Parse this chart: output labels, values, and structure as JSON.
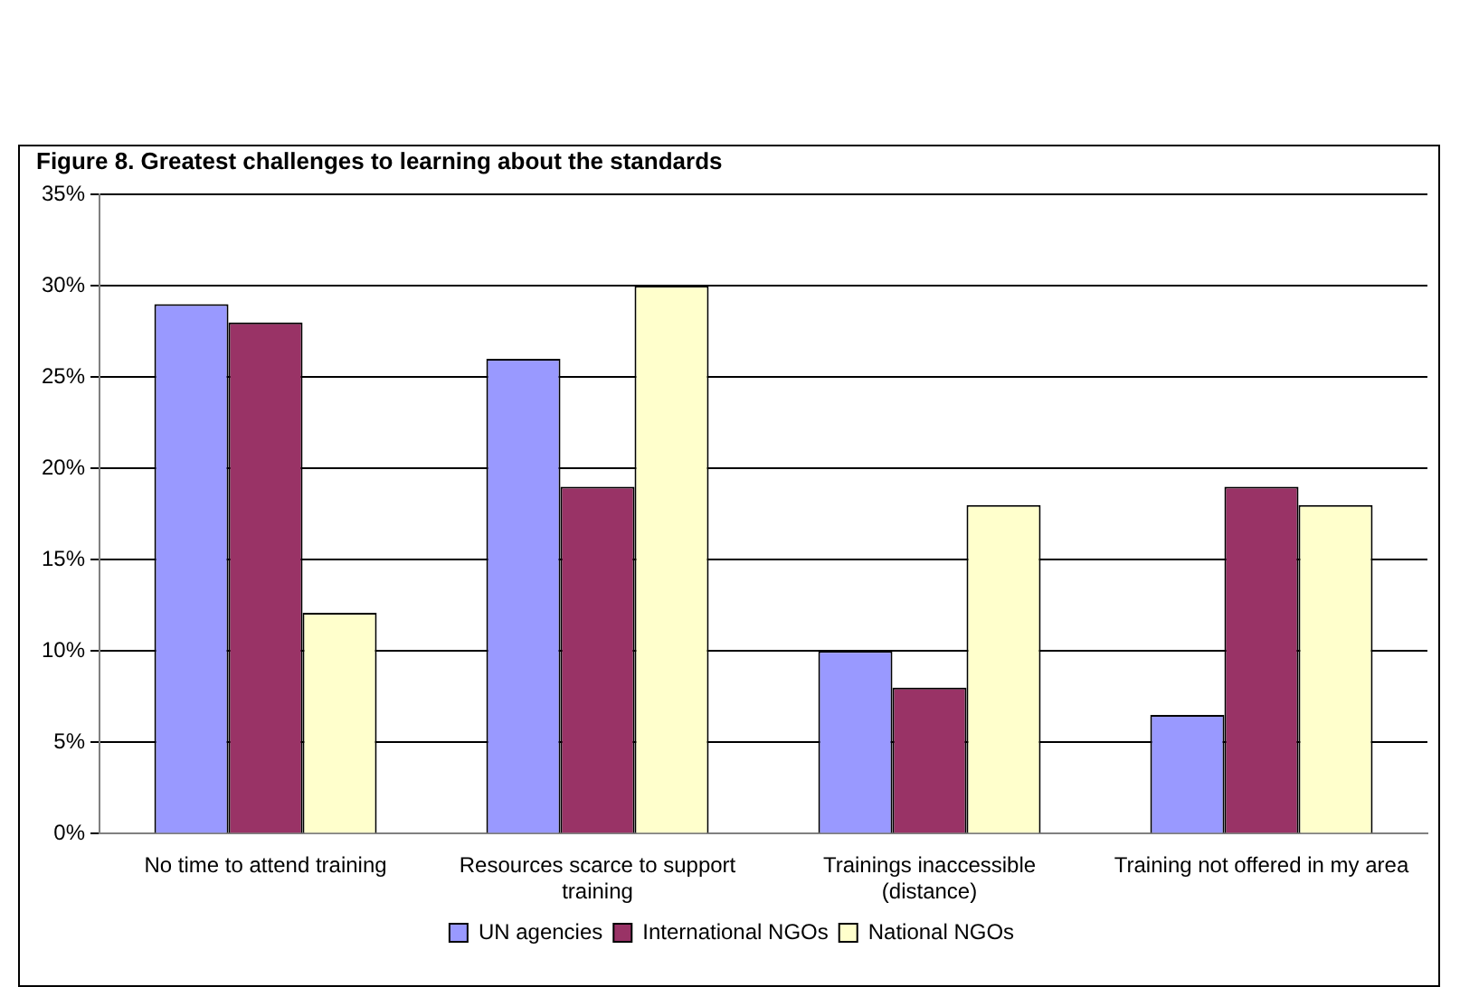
{
  "chart_data": {
    "type": "bar",
    "title": "Figure 8. Greatest challenges to learning about the standards",
    "categories": [
      "No time to attend training",
      "Resources scarce to support training",
      "Trainings inaccessible (distance)",
      "Training not offered in my area"
    ],
    "series": [
      {
        "name": "UN agencies",
        "color": "#9999ff",
        "values": [
          29,
          26,
          10,
          6.5
        ]
      },
      {
        "name": "International NGOs",
        "color": "#993366",
        "values": [
          28,
          19,
          8,
          19
        ]
      },
      {
        "name": "National NGOs",
        "color": "#ffffcc",
        "values": [
          12.1,
          30,
          18,
          18
        ]
      }
    ],
    "ylim": [
      0,
      35
    ],
    "yticks": [
      {
        "value": 0,
        "label": "0%"
      },
      {
        "value": 5,
        "label": "5%"
      },
      {
        "value": 10,
        "label": "10%"
      },
      {
        "value": 15,
        "label": "15%"
      },
      {
        "value": 20,
        "label": "20%"
      },
      {
        "value": 25,
        "label": "25%"
      },
      {
        "value": 30,
        "label": "30%"
      },
      {
        "value": 35,
        "label": "35%"
      }
    ],
    "grid": "y",
    "legend": "bottom"
  }
}
